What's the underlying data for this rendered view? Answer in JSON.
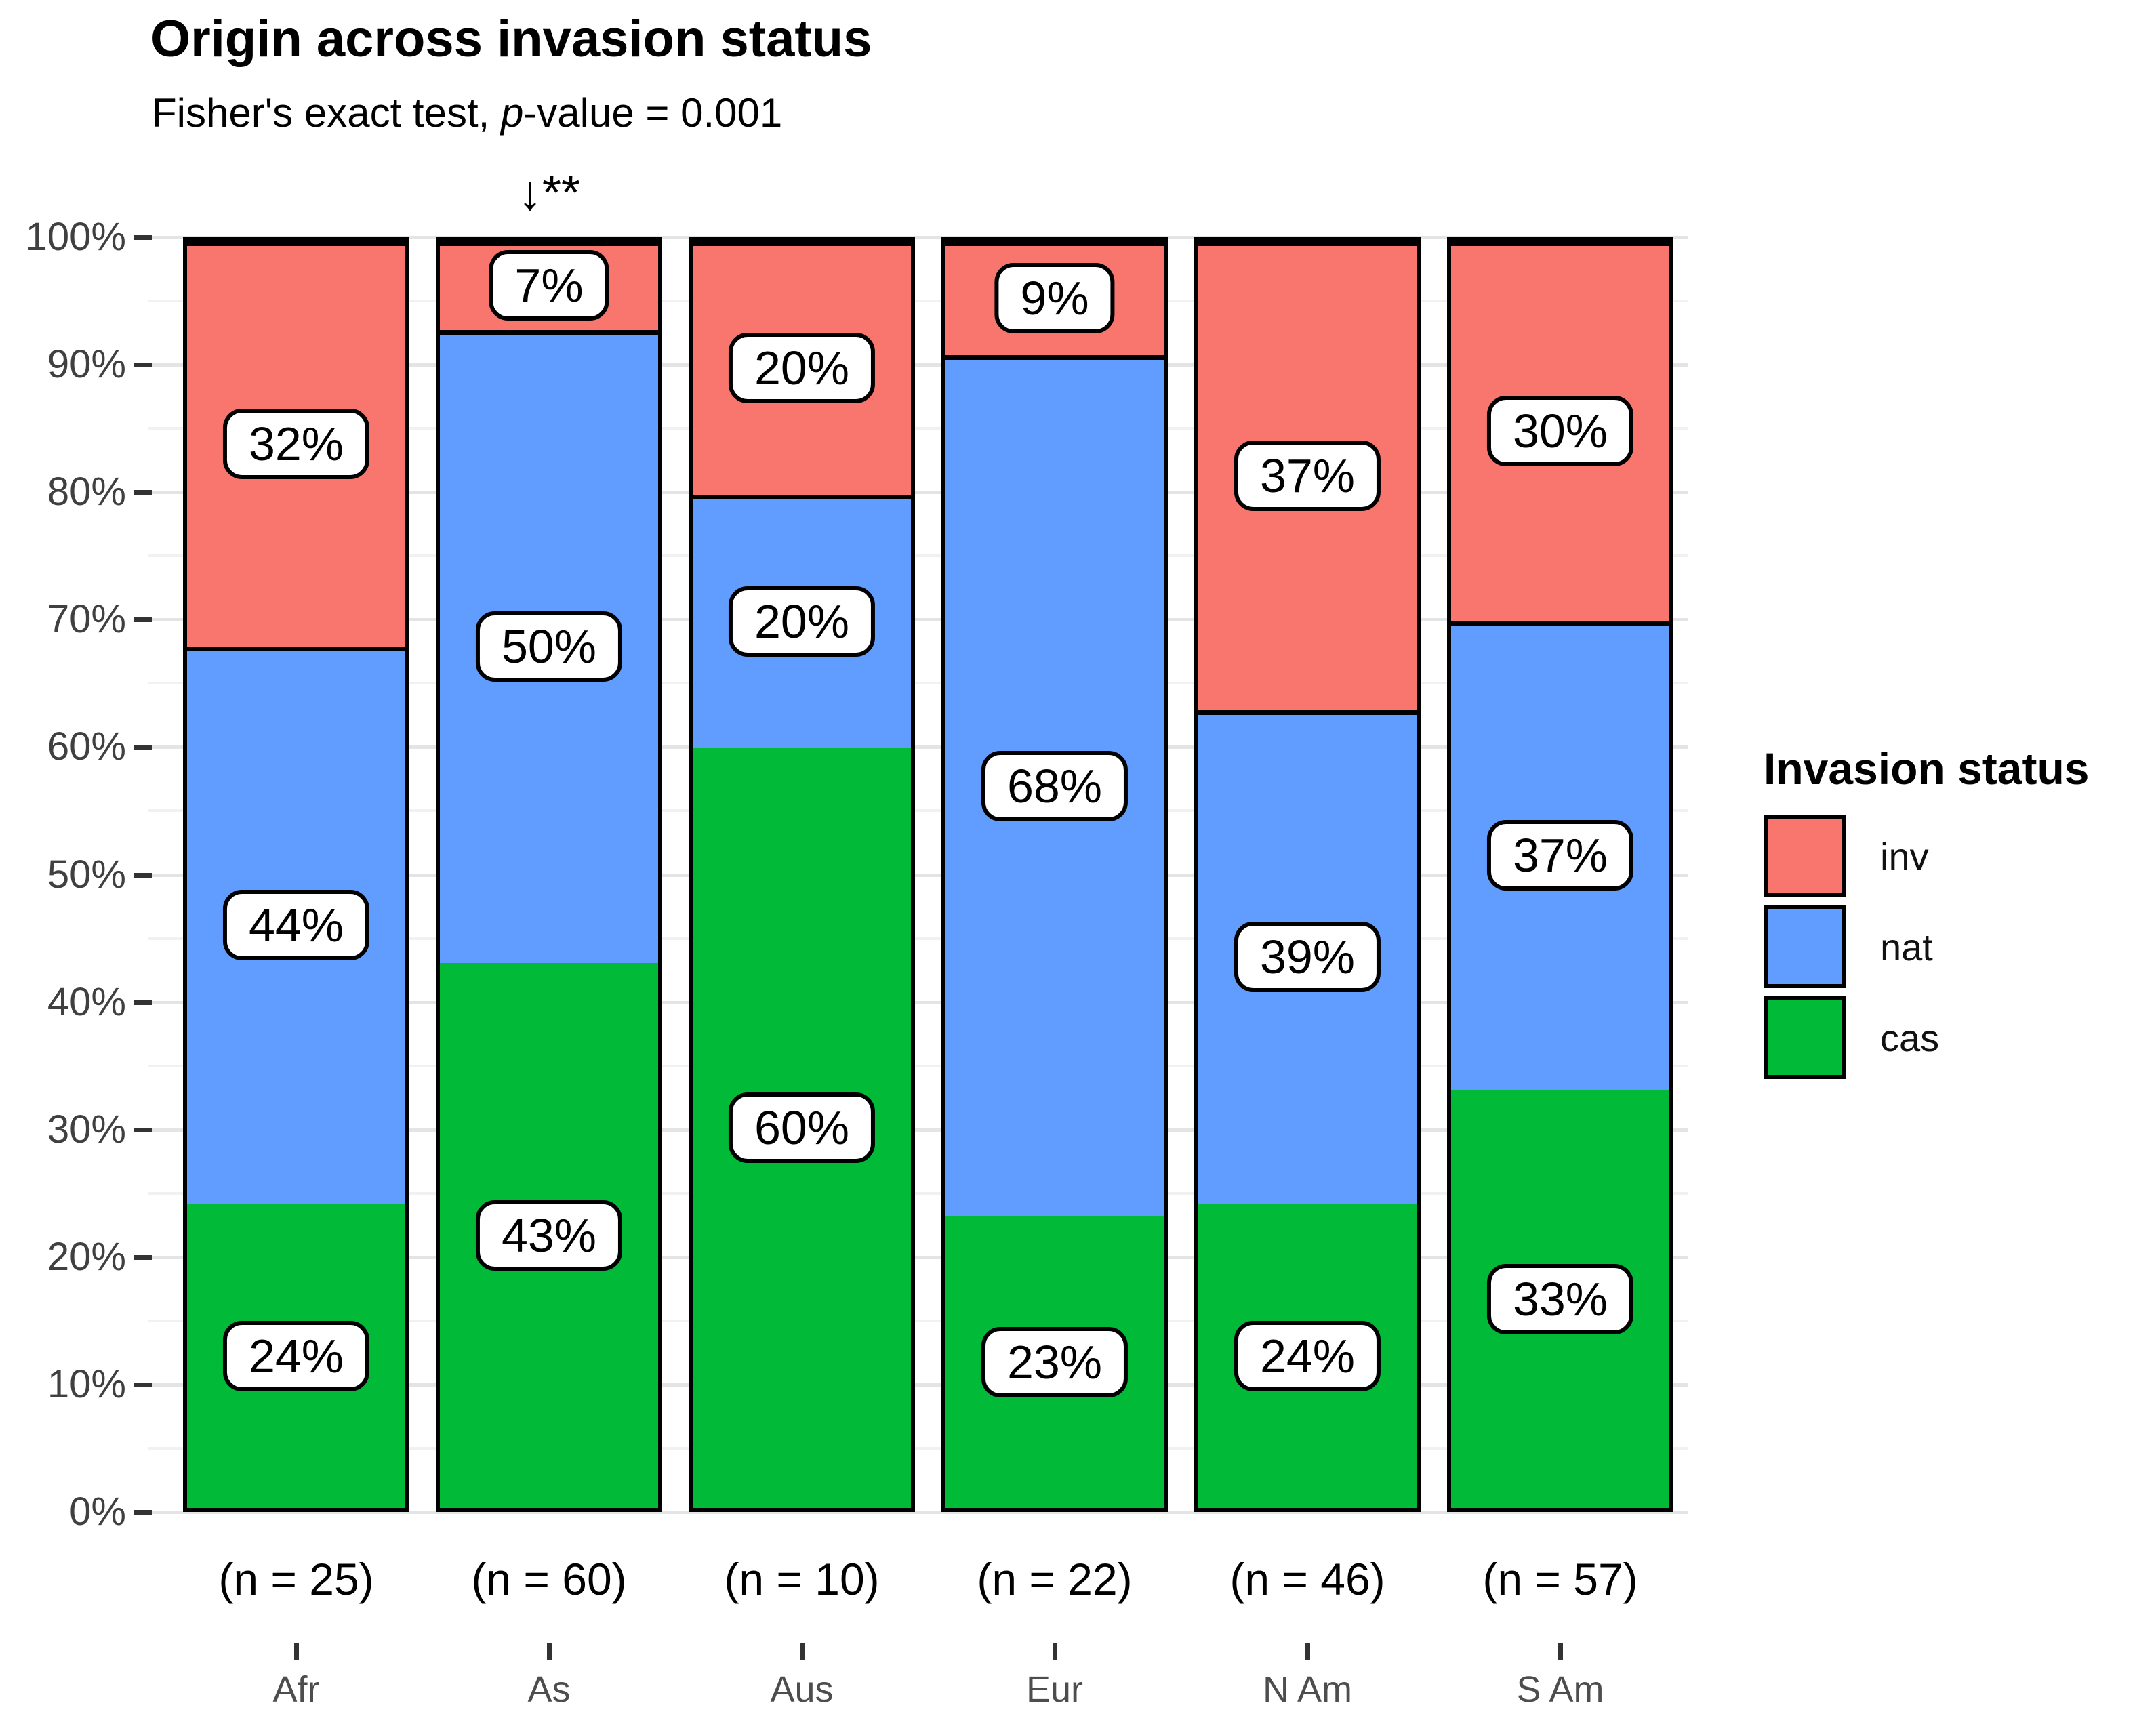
{
  "chart_data": {
    "type": "bar",
    "stacked": true,
    "percent": true,
    "title": "Origin across invasion status",
    "subtitle": "Fisher's exact test, p-value = 0.001",
    "subtitle_parts": {
      "prefix": "Fisher's exact test, ",
      "italic": "p",
      "rest": "-value = 0.001"
    },
    "legend_title": "Invasion status",
    "legend_position": "right",
    "annotation": {
      "text": "↓**",
      "category": "As"
    },
    "categories": [
      "Afr",
      "As",
      "Aus",
      "Eur",
      "N Am",
      "S Am"
    ],
    "sample_sizes": [
      "(n = 25)",
      "(n = 60)",
      "(n = 10)",
      "(n = 22)",
      "(n = 46)",
      "(n = 57)"
    ],
    "n": [
      25,
      60,
      10,
      22,
      46,
      57
    ],
    "series": [
      {
        "name": "cas",
        "color": "#00BA38",
        "values": [
          24,
          43,
          60,
          23,
          24,
          33
        ]
      },
      {
        "name": "nat",
        "color": "#619CFF",
        "values": [
          44,
          50,
          20,
          68,
          39,
          37
        ]
      },
      {
        "name": "inv",
        "color": "#F8766D",
        "values": [
          32,
          7,
          20,
          9,
          37,
          30
        ]
      }
    ],
    "value_suffix": "%",
    "xlabel": "",
    "ylabel": "",
    "ylim": [
      0,
      100
    ],
    "y_major_step": 10,
    "y_minor_step": 5,
    "y_tick_labels": [
      "0%",
      "10%",
      "20%",
      "30%",
      "40%",
      "50%",
      "60%",
      "70%",
      "80%",
      "90%",
      "100%"
    ],
    "grid": true,
    "bar_outline_color": "#000000",
    "label_box_color": "#ffffff"
  }
}
